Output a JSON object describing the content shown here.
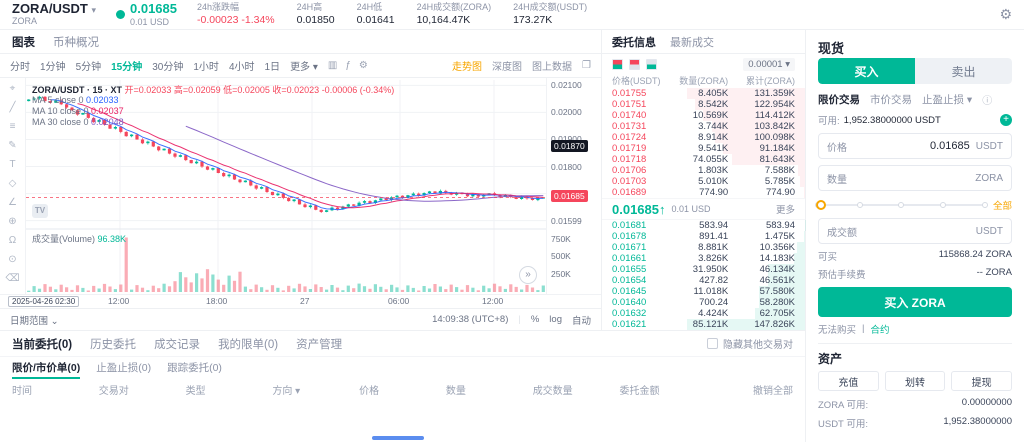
{
  "header": {
    "pair": "ZORA/USDT",
    "pair_caret": "▾",
    "pair_sub": "ZORA",
    "price": "0.01685",
    "price_usd": "0.01 USD",
    "stats": [
      {
        "label": "24h涨跌幅",
        "value": "-0.00023 -1.34%",
        "neg": true
      },
      {
        "label": "24H高",
        "value": "0.01850",
        "neg": false
      },
      {
        "label": "24H低",
        "value": "0.01641",
        "neg": false
      },
      {
        "label": "24H成交额(ZORA)",
        "value": "10,164.47K",
        "neg": false
      },
      {
        "label": "24H成交额(USDT)",
        "value": "173.27K",
        "neg": false
      }
    ],
    "settings_icon": "⚙"
  },
  "chart": {
    "tabs": [
      {
        "label": "图表",
        "active": true
      },
      {
        "label": "币种概况",
        "active": false
      }
    ],
    "intervals": [
      "分时",
      "1分钟",
      "5分钟",
      "15分钟",
      "30分钟",
      "1小时",
      "4小时",
      "1日"
    ],
    "active_interval": "15分钟",
    "more_label": "更多 ▾",
    "interval_icons": [
      {
        "name": "candle-style-icon",
        "glyph": "▥"
      },
      {
        "name": "indicators-icon",
        "glyph": "ƒ"
      },
      {
        "name": "chart-settings-icon",
        "glyph": "⚙"
      }
    ],
    "view_links": [
      {
        "label": "走势图",
        "active": true
      },
      {
        "label": "深度图",
        "active": false
      },
      {
        "label": "图上数据",
        "active": false
      }
    ],
    "fullscreen_icon": "❐",
    "legend_symbol": "ZORA/USDT · 15 · XT",
    "legend_ohlc": "开=0.02033  高=0.02059  低=0.02005  收=0.02023  -0.00006 (-0.34%)",
    "ma": [
      {
        "label": "MA 5 close 0",
        "value": "0.02033",
        "color": "#2962ff"
      },
      {
        "label": "MA 10 close 0",
        "value": "0.02037",
        "color": "#e91e63"
      },
      {
        "label": "MA 30 close 0",
        "value": "0.02048",
        "color": "#7e57c2"
      }
    ],
    "volume_label": "成交量(Volume)",
    "volume_value": "96.38K",
    "y_labels": [
      {
        "text": "0.02100",
        "price": 2100
      },
      {
        "text": "0.02000",
        "price": 2000
      },
      {
        "text": "0.01900",
        "price": 1900
      },
      {
        "text": "0.01800",
        "price": 1800
      },
      {
        "text": "0.01700",
        "price": 1700
      },
      {
        "text": "0.01599",
        "price": 1600
      }
    ],
    "dark_tag": {
      "text": "0.01870",
      "price": 1870
    },
    "price_tag": {
      "text": "0.01685",
      "price": 1685
    },
    "vol_labels": [
      {
        "text": "750K",
        "value": 750
      },
      {
        "text": "500K",
        "value": 500
      },
      {
        "text": "250K",
        "value": 250
      }
    ],
    "x_labels": [
      "12:00",
      "18:00",
      "27",
      "06:00",
      "12:00"
    ],
    "date_marker": "2025-04-26  02:30",
    "watermark": "TV",
    "toolbar_icons": [
      {
        "name": "crosshair-icon",
        "glyph": "⌖"
      },
      {
        "name": "trendline-icon",
        "glyph": "╱"
      },
      {
        "name": "fib-icon",
        "glyph": "≡"
      },
      {
        "name": "brush-icon",
        "glyph": "✎"
      },
      {
        "name": "text-icon",
        "glyph": "T"
      },
      {
        "name": "shapes-icon",
        "glyph": "◇"
      },
      {
        "name": "measure-icon",
        "glyph": "∠"
      },
      {
        "name": "zoom-icon",
        "glyph": "⊕"
      },
      {
        "name": "magnet-icon",
        "glyph": "Ω"
      },
      {
        "name": "lock-icon",
        "glyph": "⊙"
      },
      {
        "name": "delete-icon",
        "glyph": "⌫"
      }
    ],
    "footer": {
      "range_label": "日期范围 ⌄",
      "time": "14:09:38 (UTC+8)",
      "percent": "%",
      "log": "log",
      "auto": "自动"
    },
    "scroll_latest_icon": "»",
    "candles": [
      2048,
      2052,
      2058,
      2042,
      2036,
      2044,
      2030,
      2018,
      2008,
      1992,
      1998,
      1980,
      1965,
      1972,
      1955,
      1940,
      1946,
      1928,
      1912,
      1918,
      1900,
      1886,
      1892,
      1874,
      1860,
      1866,
      1848,
      1836,
      1842,
      1824,
      1812,
      1818,
      1800,
      1788,
      1794,
      1776,
      1764,
      1770,
      1752,
      1742,
      1748,
      1730,
      1718,
      1724,
      1706,
      1694,
      1700,
      1684,
      1672,
      1678,
      1660,
      1650,
      1656,
      1640,
      1632,
      1638,
      1648,
      1642,
      1652,
      1660,
      1655,
      1666,
      1672,
      1665,
      1675,
      1682,
      1676,
      1686,
      1692,
      1684,
      1694,
      1700,
      1693,
      1702,
      1708,
      1700,
      1710,
      1703,
      1696,
      1704,
      1698,
      1690,
      1697,
      1689,
      1695,
      1701,
      1694,
      1688,
      1695,
      1687,
      1680,
      1688,
      1682,
      1676,
      1683,
      1685
    ]
  },
  "orderbook": {
    "tabs": [
      {
        "label": "委托信息",
        "active": true
      },
      {
        "label": "最新成交",
        "active": false
      }
    ],
    "precision": "0.00001 ▾",
    "columns": [
      "价格(USDT)",
      "数量(ZORA)",
      "累计(ZORA)"
    ],
    "asks": [
      [
        "0.01755",
        "8.405K",
        "131.359K"
      ],
      [
        "0.01751",
        "8.542K",
        "122.954K"
      ],
      [
        "0.01740",
        "10.569K",
        "114.412K"
      ],
      [
        "0.01731",
        "3.744K",
        "103.842K"
      ],
      [
        "0.01724",
        "8.914K",
        "100.098K"
      ],
      [
        "0.01719",
        "9.541K",
        "91.184K"
      ],
      [
        "0.01718",
        "74.055K",
        "81.643K"
      ],
      [
        "0.01706",
        "1.803K",
        "7.588K"
      ],
      [
        "0.01703",
        "5.010K",
        "5.785K"
      ],
      [
        "0.01689",
        "774.90",
        "774.90"
      ]
    ],
    "mid": {
      "price": "0.01685↑",
      "usd": "0.01 USD",
      "more": "更多"
    },
    "bids": [
      [
        "0.01681",
        "583.94",
        "583.94"
      ],
      [
        "0.01678",
        "891.41",
        "1.475K"
      ],
      [
        "0.01671",
        "8.881K",
        "10.356K"
      ],
      [
        "0.01661",
        "3.826K",
        "14.183K"
      ],
      [
        "0.01655",
        "31.950K",
        "46.134K"
      ],
      [
        "0.01654",
        "427.82",
        "46.561K"
      ],
      [
        "0.01645",
        "11.018K",
        "57.580K"
      ],
      [
        "0.01640",
        "700.24",
        "58.280K"
      ],
      [
        "0.01632",
        "4.424K",
        "62.705K"
      ],
      [
        "0.01621",
        "85.121K",
        "147.826K"
      ]
    ]
  },
  "trade": {
    "title": "现货",
    "buy_label": "买入",
    "sell_label": "卖出",
    "order_types": [
      {
        "label": "限价交易",
        "active": true
      },
      {
        "label": "市价交易",
        "active": false
      },
      {
        "label": "止盈止损 ▾",
        "active": false
      }
    ],
    "info_icon": "ⓘ",
    "available_label": "可用:",
    "available_value": "1,952.38000000 USDT",
    "add_icon": "+",
    "price_label": "价格",
    "price_value": "0.01685",
    "price_unit": "USDT",
    "amount_label": "数量",
    "amount_value": "",
    "amount_unit": "ZORA",
    "slider_all": "全部",
    "total_label": "成交额",
    "total_value": "",
    "total_unit": "USDT",
    "can_buy_label": "可买",
    "can_buy_value": "115868.24 ZORA",
    "fee_label": "预估手续费",
    "fee_value": "-- ZORA",
    "submit_label": "买入 ZORA",
    "footer_left": "无法购买",
    "footer_divider": "|",
    "footer_right": "合约"
  },
  "assets": {
    "title": "资产",
    "actions": [
      "充值",
      "划转",
      "提现"
    ],
    "rows": [
      {
        "label": "ZORA 可用:",
        "value": "0.00000000"
      },
      {
        "label": "USDT 可用:",
        "value": "1,952.38000000"
      }
    ]
  },
  "orders": {
    "tabs": [
      {
        "label": "当前委托(0)",
        "active": true
      },
      {
        "label": "历史委托",
        "active": false
      },
      {
        "label": "成交记录",
        "active": false
      },
      {
        "label": "我的限单(0)",
        "active": false
      },
      {
        "label": "资产管理",
        "active": false
      }
    ],
    "hide_other_label": "隐藏其他交易对",
    "subtabs": [
      {
        "label": "限价/市价单(0)",
        "active": true
      },
      {
        "label": "止盈止损(0)",
        "active": false
      },
      {
        "label": "跟踪委托(0)",
        "active": false
      }
    ],
    "columns": [
      "时间",
      "交易对",
      "类型",
      "方向 ▾",
      "价格",
      "数量",
      "成交数量",
      "委托金额",
      "撤销全部"
    ]
  },
  "colors": {
    "up": "#00b897",
    "down": "#f5465c",
    "accent": "#f7a600"
  }
}
